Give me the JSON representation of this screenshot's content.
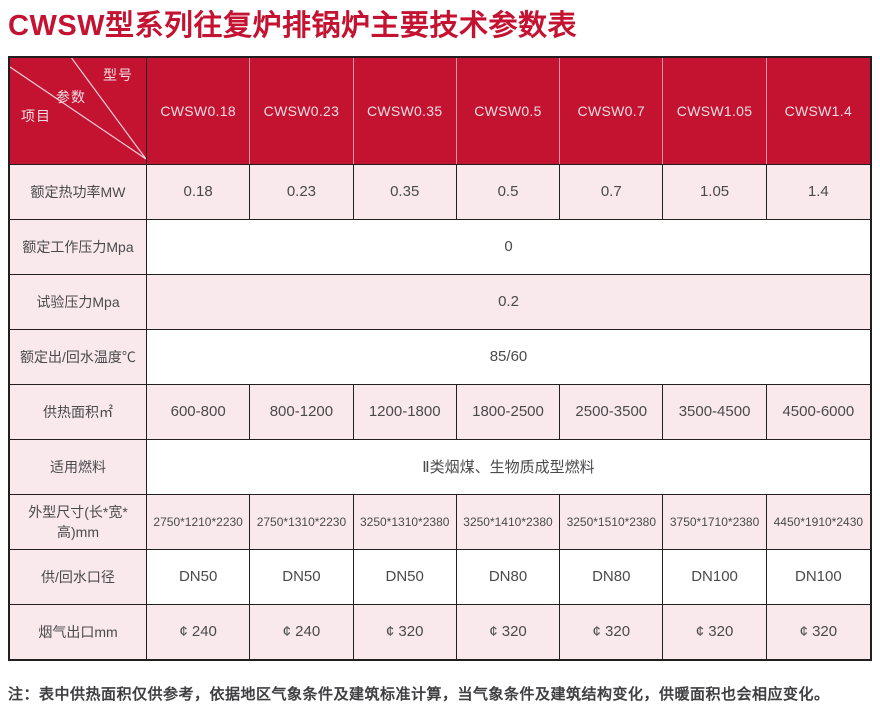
{
  "title": "CWSW型系列往复炉排锅炉主要技术参数表",
  "colors": {
    "accent_red": "#c41231",
    "row_pink": "#f9e9ed",
    "border_dark": "#231f20",
    "body_text": "#4a4a4c",
    "header_text": "#f2dee2"
  },
  "table": {
    "corner": {
      "model_label": "型号",
      "param_label": "参数",
      "item_label": "项目"
    },
    "models": [
      "CWSW0.18",
      "CWSW0.23",
      "CWSW0.35",
      "CWSW0.5",
      "CWSW0.7",
      "CWSW1.05",
      "CWSW1.4"
    ],
    "rows": [
      {
        "label": "额定热功率MW",
        "type": "values",
        "shade": "pink",
        "values": [
          "0.18",
          "0.23",
          "0.35",
          "0.5",
          "0.7",
          "1.05",
          "1.4"
        ]
      },
      {
        "label": "额定工作压力Mpa",
        "type": "span",
        "shade": "white",
        "value": "0"
      },
      {
        "label": "试验压力Mpa",
        "type": "span",
        "shade": "pink",
        "value": "0.2"
      },
      {
        "label": "额定出/回水温度℃",
        "type": "span",
        "shade": "white",
        "value": "85/60"
      },
      {
        "label": "供热面积㎡",
        "type": "values",
        "shade": "pink",
        "values": [
          "600-800",
          "800-1200",
          "1200-1800",
          "1800-2500",
          "2500-3500",
          "3500-4500",
          "4500-6000"
        ]
      },
      {
        "label": "适用燃料",
        "type": "span",
        "shade": "white",
        "value": "Ⅱ类烟煤、生物质成型燃料"
      },
      {
        "label": "外型尺寸(长*宽*高)mm",
        "type": "values",
        "shade": "pink",
        "values": [
          "2750*1210*2230",
          "2750*1310*2230",
          "3250*1310*2380",
          "3250*1410*2380",
          "3250*1510*2380",
          "3750*1710*2380",
          "4450*1910*2430"
        ]
      },
      {
        "label": "供/回水口径",
        "type": "values",
        "shade": "white",
        "values": [
          "DN50",
          "DN50",
          "DN50",
          "DN80",
          "DN80",
          "DN100",
          "DN100"
        ]
      },
      {
        "label": "烟气出口mm",
        "type": "values",
        "shade": "pink",
        "values": [
          "¢ 240",
          "¢ 240",
          "¢ 320",
          "¢ 320",
          "¢ 320",
          "¢ 320",
          "¢ 320"
        ]
      }
    ]
  },
  "note": "注：表中供热面积仅供参考，依据地区气象条件及建筑标准计算，当气象条件及建筑结构变化，供暖面积也会相应变化。"
}
